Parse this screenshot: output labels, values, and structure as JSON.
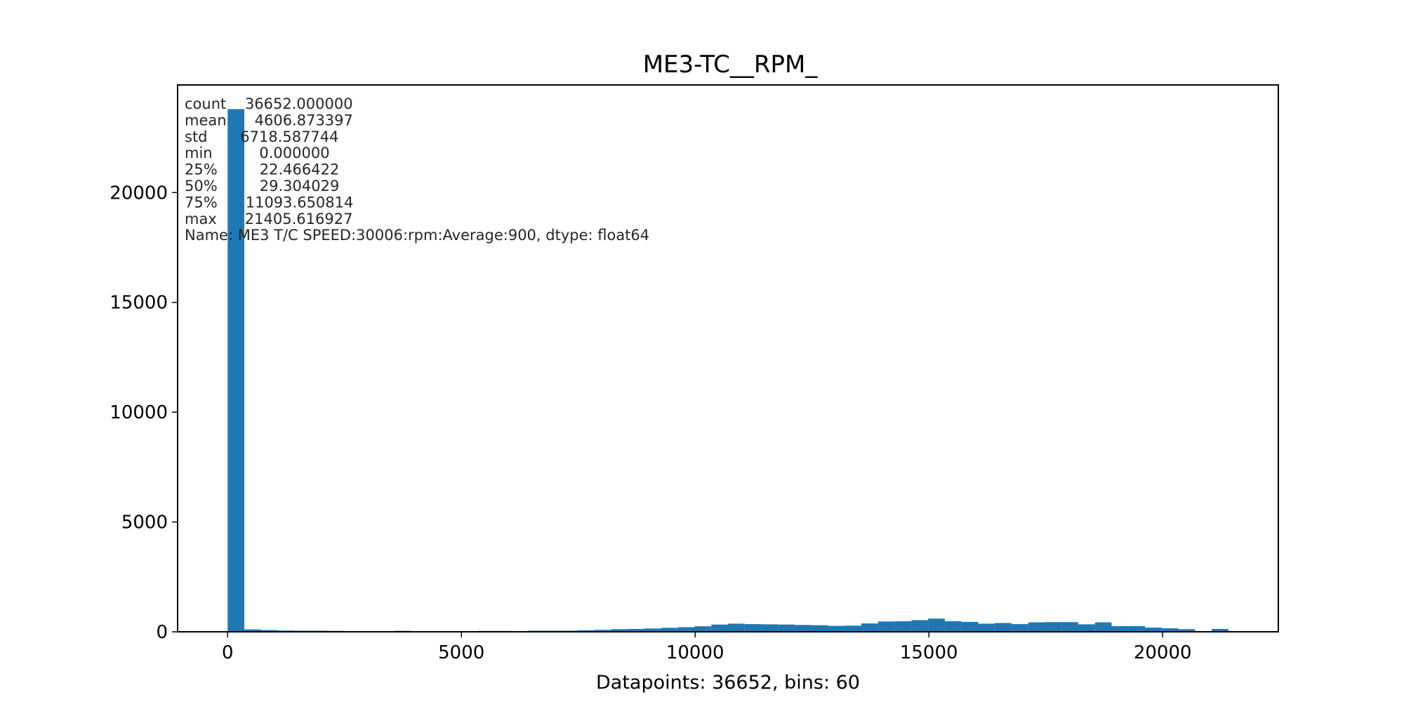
{
  "chart_data": {
    "type": "bar",
    "title": "ME3-TC__RPM_",
    "xlabel": "Datapoints: 36652, bins: 60",
    "ylabel": "",
    "bar_color": "#1f77b4",
    "xlim": [
      -1070,
      22475
    ],
    "ylim": [
      0,
      24900
    ],
    "x_ticks": [
      0,
      5000,
      10000,
      15000,
      20000
    ],
    "y_ticks": [
      0,
      5000,
      10000,
      15000,
      20000
    ],
    "bin_start": 0,
    "bin_width": 356.76,
    "values": [
      23800,
      110,
      80,
      60,
      50,
      50,
      40,
      30,
      20,
      20,
      45,
      25,
      20,
      20,
      25,
      40,
      40,
      20,
      50,
      50,
      50,
      70,
      90,
      120,
      130,
      150,
      180,
      210,
      250,
      330,
      370,
      350,
      340,
      330,
      310,
      300,
      270,
      280,
      380,
      470,
      480,
      530,
      600,
      480,
      450,
      370,
      400,
      350,
      430,
      440,
      440,
      340,
      430,
      260,
      260,
      190,
      160,
      120,
      30,
      130
    ],
    "stats_lines": [
      "count    36652.000000",
      "mean      4606.873397",
      "std       6718.587744",
      "min          0.000000",
      "25%         22.466422",
      "50%         29.304029",
      "75%      11093.650814",
      "max      21405.616927",
      "Name: ME3 T/C SPEED:30006:rpm:Average:900, dtype: float64"
    ]
  }
}
